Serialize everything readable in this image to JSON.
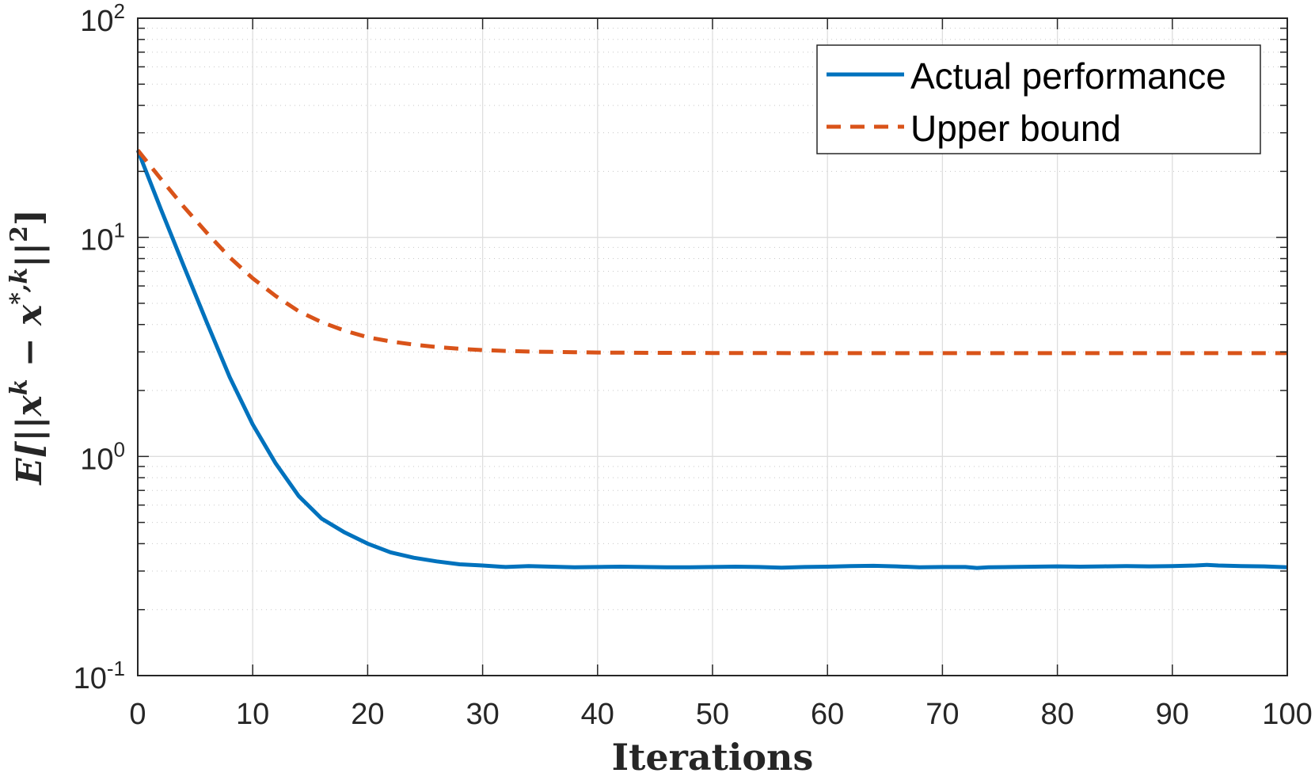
{
  "chart_data": {
    "type": "line",
    "title": "",
    "xlabel": "Iterations",
    "ylabel": "E[||x^k − x^{*,k}||^2]",
    "ylabel_parts": {
      "p1": "E[||",
      "p2": "x",
      "p3": "k",
      "p4": " − ",
      "p5": "x",
      "p6": "*,k",
      "p7": "||",
      "p8": "2",
      "p9": "]"
    },
    "xlim": [
      0,
      100
    ],
    "ylim": [
      0.1,
      100
    ],
    "yscale": "log",
    "grid": true,
    "legend_position": "top-right",
    "x_ticks": [
      0,
      10,
      20,
      30,
      40,
      50,
      60,
      70,
      80,
      90,
      100
    ],
    "x_tick_labels": [
      "0",
      "10",
      "20",
      "30",
      "40",
      "50",
      "60",
      "70",
      "80",
      "90",
      "100"
    ],
    "y_ticks": [
      {
        "value": 0.1,
        "base": "10",
        "exp": "-1"
      },
      {
        "value": 1,
        "base": "10",
        "exp": "0"
      },
      {
        "value": 10,
        "base": "10",
        "exp": "1"
      },
      {
        "value": 100,
        "base": "10",
        "exp": "2"
      }
    ],
    "series": [
      {
        "name": "Actual performance",
        "color": "#0072BD",
        "style": "solid",
        "x": [
          0,
          2,
          4,
          6,
          8,
          10,
          12,
          14,
          16,
          18,
          20,
          22,
          24,
          26,
          28,
          30,
          32,
          34,
          36,
          38,
          40,
          42,
          44,
          46,
          48,
          50,
          52,
          54,
          56,
          58,
          60,
          62,
          64,
          66,
          68,
          70,
          72,
          73,
          74,
          76,
          78,
          80,
          82,
          84,
          86,
          88,
          90,
          92,
          93,
          94,
          96,
          98,
          100
        ],
        "y": [
          25,
          13.5,
          7.4,
          4.1,
          2.3,
          1.4,
          0.93,
          0.66,
          0.52,
          0.45,
          0.4,
          0.365,
          0.345,
          0.332,
          0.322,
          0.318,
          0.313,
          0.316,
          0.314,
          0.312,
          0.313,
          0.314,
          0.313,
          0.312,
          0.312,
          0.313,
          0.314,
          0.313,
          0.311,
          0.313,
          0.314,
          0.316,
          0.317,
          0.315,
          0.312,
          0.313,
          0.313,
          0.31,
          0.312,
          0.313,
          0.314,
          0.315,
          0.314,
          0.315,
          0.316,
          0.315,
          0.316,
          0.318,
          0.32,
          0.318,
          0.316,
          0.315,
          0.312
        ]
      },
      {
        "name": "Upper bound",
        "color": "#D95319",
        "style": "dashed",
        "x": [
          0,
          2,
          4,
          6,
          8,
          10,
          12,
          14,
          16,
          18,
          20,
          22,
          24,
          26,
          28,
          30,
          32,
          34,
          36,
          38,
          40,
          45,
          50,
          60,
          70,
          80,
          90,
          100
        ],
        "y": [
          25,
          18.5,
          13.8,
          10.5,
          8.1,
          6.5,
          5.4,
          4.6,
          4.1,
          3.75,
          3.5,
          3.35,
          3.24,
          3.16,
          3.1,
          3.06,
          3.03,
          3.01,
          3.0,
          2.99,
          2.98,
          2.97,
          2.965,
          2.96,
          2.96,
          2.96,
          2.96,
          2.96
        ]
      }
    ]
  }
}
